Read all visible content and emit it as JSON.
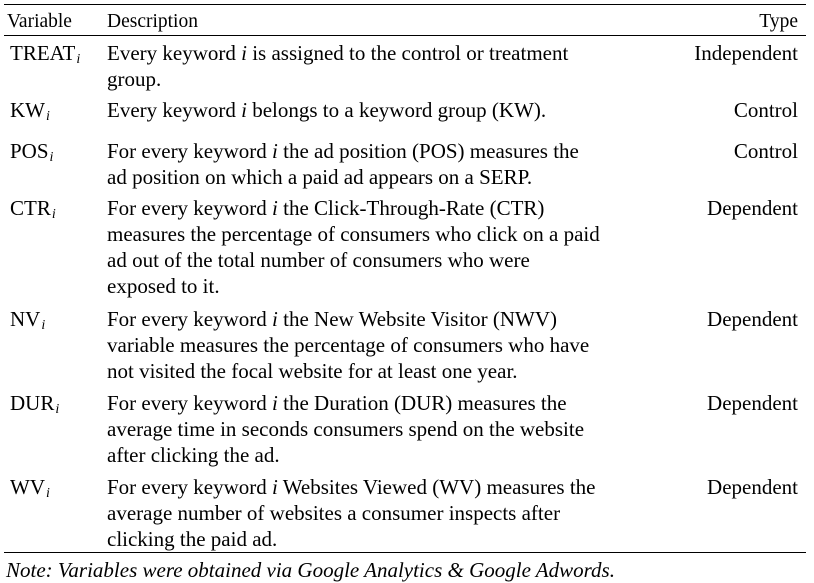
{
  "table": {
    "headers": {
      "variable": "Variable",
      "description": "Description",
      "type": "Type"
    },
    "rows": [
      {
        "var": "TREAT",
        "sub": "i",
        "desc": [
          {
            "t": "Every keyword "
          },
          {
            "t": "i",
            "i": true
          },
          {
            "t": " is assigned to the control or treatment\ngroup."
          }
        ],
        "type": "Independent"
      },
      {
        "var": "KW",
        "sub": "i",
        "desc": [
          {
            "t": "Every keyword "
          },
          {
            "t": "i",
            "i": true
          },
          {
            "t": " belongs to a keyword group (KW)."
          }
        ],
        "type": "Control"
      },
      {
        "var": "POS",
        "sub": "i",
        "desc": [
          {
            "t": "For every keyword "
          },
          {
            "t": "i",
            "i": true
          },
          {
            "t": " the ad position (POS) measures the\nad position on which a paid ad appears on a SERP."
          }
        ],
        "type": "Control"
      },
      {
        "var": "CTR",
        "sub": "i",
        "desc": [
          {
            "t": "For every keyword "
          },
          {
            "t": "i",
            "i": true
          },
          {
            "t": " the Click-Through-Rate (CTR)\nmeasures the percentage of consumers who click on a paid\nad out of the total number of consumers who were\nexposed to it."
          }
        ],
        "type": "Dependent"
      },
      {
        "var": "NV",
        "sub": "i",
        "desc": [
          {
            "t": "For every keyword "
          },
          {
            "t": "i",
            "i": true
          },
          {
            "t": " the New Website Visitor (NWV)\nvariable measures the percentage of consumers who have\nnot visited the focal website for at least one year."
          }
        ],
        "type": "Dependent"
      },
      {
        "var": "DUR",
        "sub": "i",
        "desc": [
          {
            "t": "For every keyword "
          },
          {
            "t": "i",
            "i": true
          },
          {
            "t": " the Duration (DUR) measures the\naverage time in seconds consumers spend on the website\nafter clicking the ad."
          }
        ],
        "type": "Dependent"
      },
      {
        "var": "WV",
        "sub": "i",
        "desc": [
          {
            "t": "For every keyword "
          },
          {
            "t": "i",
            "i": true
          },
          {
            "t": " Websites Viewed (WV) measures the\naverage number of websites a consumer inspects after\nclicking the paid ad."
          }
        ],
        "type": "Dependent"
      }
    ],
    "note": "Note: Variables were obtained via Google Analytics & Google Adwords."
  }
}
